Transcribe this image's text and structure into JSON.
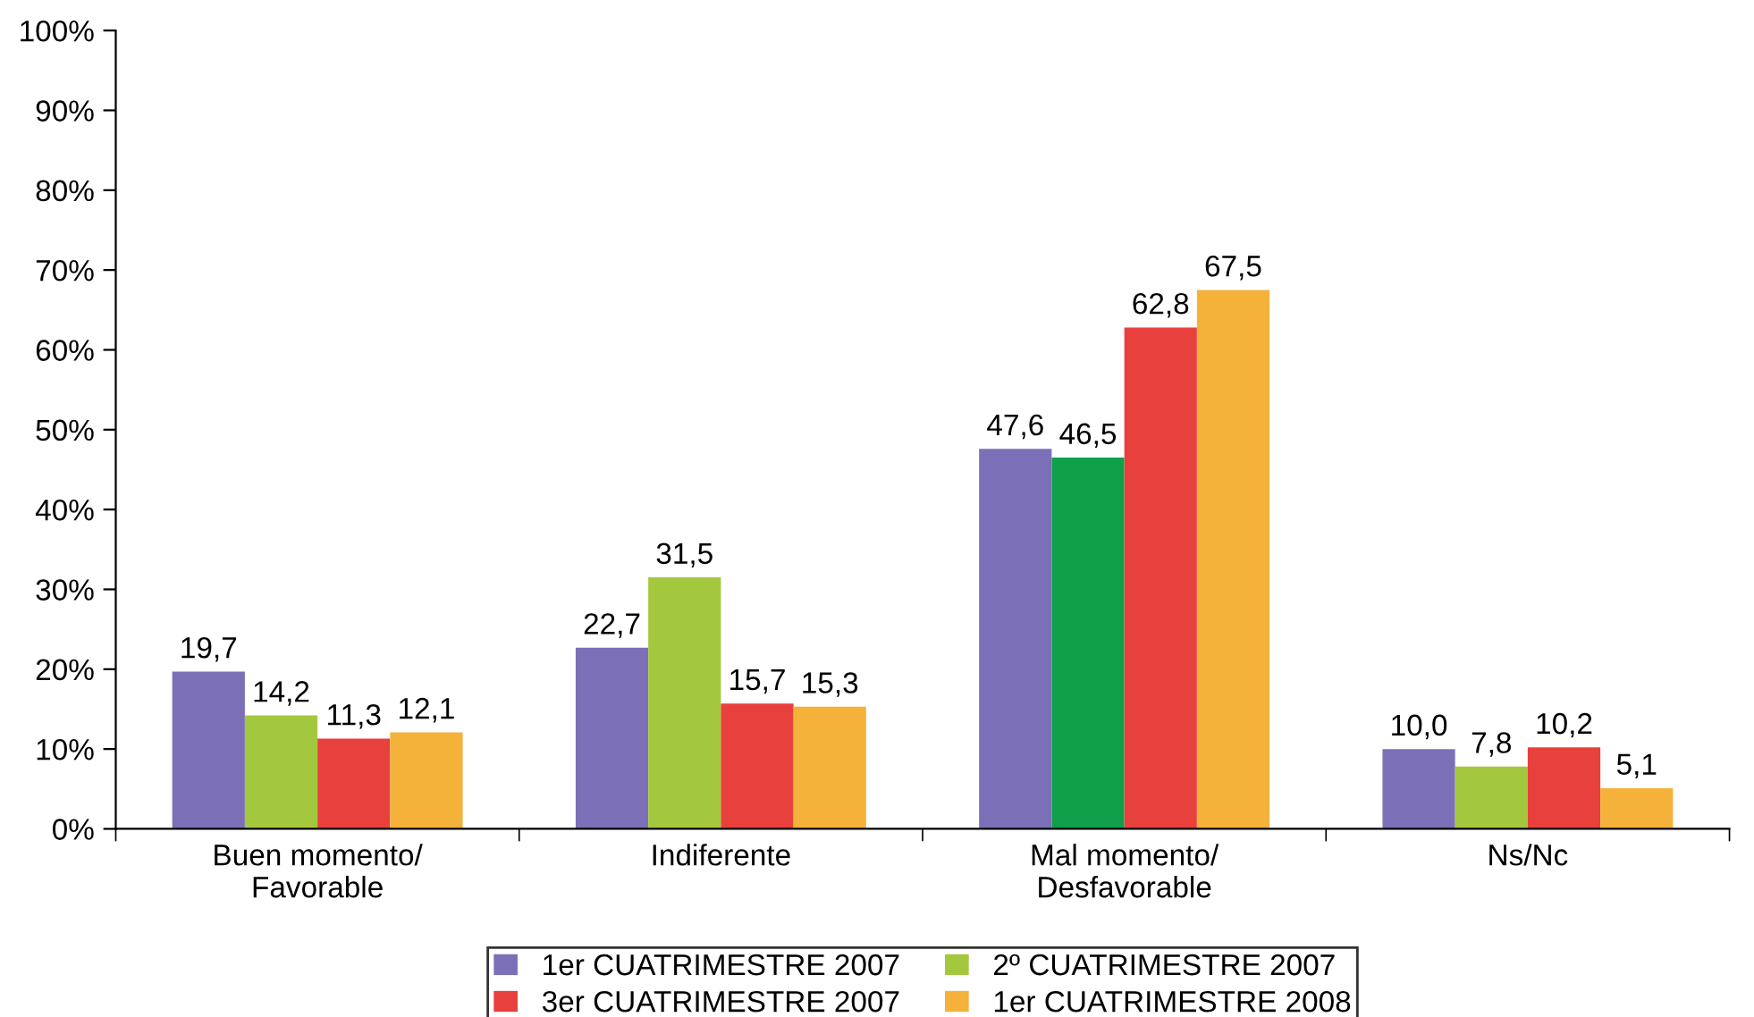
{
  "chart_data": {
    "type": "bar",
    "categories": [
      "Buen momento/\nFavorable",
      "Indiferente",
      "Mal momento/\nDesfavorable",
      "Ns/Nc"
    ],
    "series": [
      {
        "name": "1er CUATRIMESTRE 2007",
        "color": "#7b70b8",
        "values": [
          19.7,
          22.7,
          47.6,
          10.0
        ],
        "value_labels": [
          "19,7",
          "22,7",
          "47,6",
          "10,0"
        ]
      },
      {
        "name": "2º CUATRIMESTRE 2007",
        "color": "#a3c83e",
        "colors": [
          "#a3c83e",
          "#a3c83e",
          "#10a04a",
          "#a3c83e"
        ],
        "values": [
          14.2,
          31.5,
          46.5,
          7.8
        ],
        "value_labels": [
          "14,2",
          "31,5",
          "46,5",
          "7,8"
        ]
      },
      {
        "name": "3er CUATRIMESTRE 2007",
        "color": "#e8403c",
        "values": [
          11.3,
          15.7,
          62.8,
          10.2
        ],
        "value_labels": [
          "11,3",
          "15,7",
          "62,8",
          "10,2"
        ]
      },
      {
        "name": "1er CUATRIMESTRE 2008",
        "color": "#f4b23a",
        "values": [
          12.1,
          15.3,
          67.5,
          5.1
        ],
        "value_labels": [
          "12,1",
          "15,3",
          "67,5",
          "5,1"
        ]
      }
    ],
    "ylim": [
      0,
      100
    ],
    "yticks": [
      {
        "value": 0,
        "label": "0%"
      },
      {
        "value": 10,
        "label": "10%"
      },
      {
        "value": 20,
        "label": "20%"
      },
      {
        "value": 30,
        "label": "30%"
      },
      {
        "value": 40,
        "label": "40%"
      },
      {
        "value": 50,
        "label": "50%"
      },
      {
        "value": 60,
        "label": "60%"
      },
      {
        "value": 70,
        "label": "70%"
      },
      {
        "value": 80,
        "label": "80%"
      },
      {
        "value": 90,
        "label": "90%"
      },
      {
        "value": 100,
        "label": "100%"
      }
    ],
    "grid": false,
    "legend": "bottom"
  }
}
